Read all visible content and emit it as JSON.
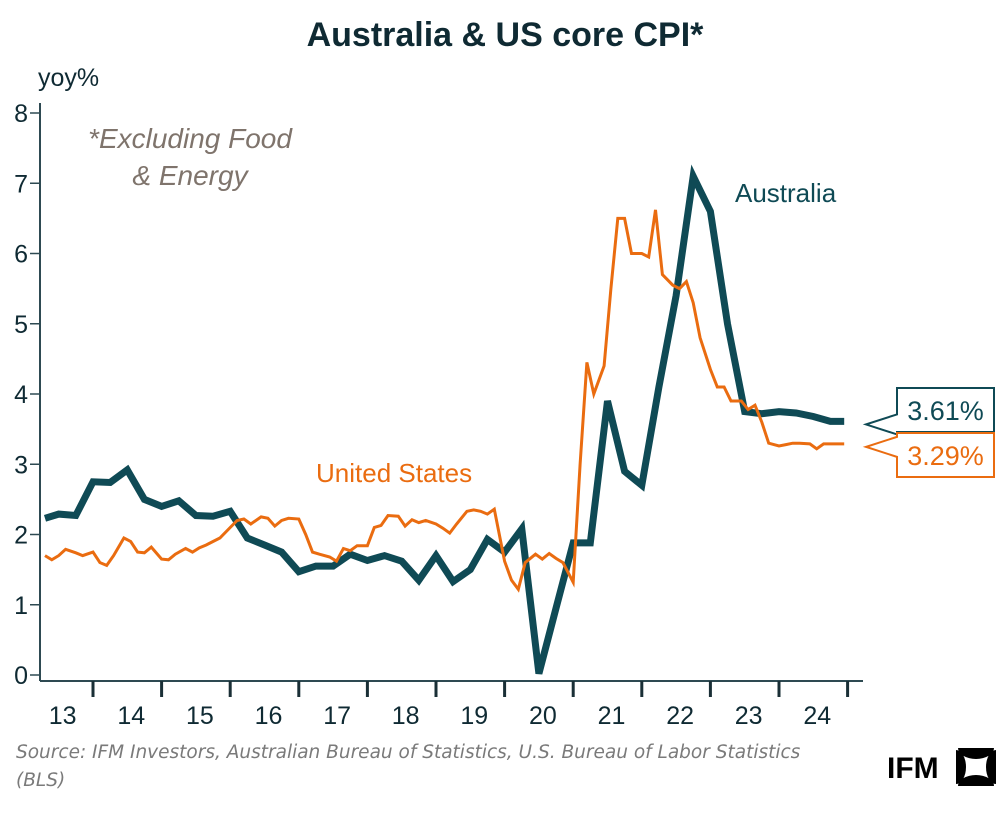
{
  "chart_data": {
    "type": "line",
    "title": "Australia & US core CPI*",
    "ylabel": "yoy%",
    "xlabel": "",
    "ylim": [
      0,
      8
    ],
    "yticks": [
      0,
      1,
      2,
      3,
      4,
      5,
      6,
      7,
      8
    ],
    "xlim": [
      2013.0,
      2025.25
    ],
    "xtick_labels": [
      "13",
      "14",
      "15",
      "16",
      "17",
      "18",
      "19",
      "20",
      "21",
      "22",
      "23",
      "24"
    ],
    "xtick_years": [
      2013,
      2014,
      2015,
      2016,
      2017,
      2018,
      2019,
      2020,
      2021,
      2022,
      2023,
      2024
    ],
    "grid": false,
    "annotation": "*Excluding Food\n& Energy",
    "annotation_lines": [
      "*Excluding Food",
      "& Energy"
    ],
    "series": [
      {
        "name": "Australia",
        "color": "#0f4a55",
        "frequency": "quarterly",
        "x": [
          2013.3,
          2013.5,
          2013.75,
          2014.0,
          2014.25,
          2014.5,
          2014.75,
          2015.0,
          2015.25,
          2015.5,
          2015.75,
          2016.0,
          2016.25,
          2016.5,
          2016.75,
          2017.0,
          2017.25,
          2017.5,
          2017.75,
          2018.0,
          2018.25,
          2018.5,
          2018.75,
          2019.0,
          2019.25,
          2019.5,
          2019.75,
          2020.0,
          2020.25,
          2020.5,
          2020.75,
          2021.0,
          2021.25,
          2021.5,
          2021.75,
          2022.0,
          2022.25,
          2022.5,
          2022.75,
          2023.0,
          2023.25,
          2023.5,
          2023.75,
          2024.0,
          2024.25,
          2024.5,
          2024.75,
          2024.95
        ],
        "values": [
          2.23,
          2.29,
          2.27,
          2.75,
          2.74,
          2.92,
          2.5,
          2.4,
          2.48,
          2.27,
          2.26,
          2.33,
          1.95,
          1.85,
          1.75,
          1.47,
          1.55,
          1.55,
          1.72,
          1.63,
          1.7,
          1.62,
          1.35,
          1.7,
          1.33,
          1.5,
          1.93,
          1.75,
          2.08,
          0.02,
          0.95,
          1.88,
          1.88,
          3.9,
          2.9,
          2.7,
          4.1,
          5.4,
          7.1,
          6.6,
          5.0,
          3.75,
          3.72,
          3.75,
          3.73,
          3.68,
          3.61,
          3.61
        ]
      },
      {
        "name": "United States",
        "color": "#ea6c10",
        "frequency": "monthly",
        "x": [
          2013.3,
          2013.4,
          2013.5,
          2013.6,
          2013.75,
          2013.85,
          2014.0,
          2014.1,
          2014.2,
          2014.3,
          2014.45,
          2014.55,
          2014.65,
          2014.75,
          2014.85,
          2015.0,
          2015.1,
          2015.2,
          2015.35,
          2015.45,
          2015.55,
          2015.65,
          2015.75,
          2015.85,
          2016.0,
          2016.1,
          2016.2,
          2016.3,
          2016.45,
          2016.55,
          2016.65,
          2016.75,
          2016.85,
          2017.0,
          2017.1,
          2017.2,
          2017.3,
          2017.45,
          2017.55,
          2017.65,
          2017.75,
          2017.85,
          2018.0,
          2018.1,
          2018.2,
          2018.3,
          2018.45,
          2018.55,
          2018.65,
          2018.75,
          2018.85,
          2019.0,
          2019.1,
          2019.2,
          2019.3,
          2019.45,
          2019.55,
          2019.65,
          2019.75,
          2019.85,
          2020.0,
          2020.1,
          2020.2,
          2020.3,
          2020.45,
          2020.55,
          2020.65,
          2020.75,
          2020.85,
          2021.0,
          2021.1,
          2021.2,
          2021.3,
          2021.45,
          2021.55,
          2021.65,
          2021.75,
          2021.85,
          2022.0,
          2022.1,
          2022.2,
          2022.3,
          2022.45,
          2022.55,
          2022.65,
          2022.75,
          2022.85,
          2023.0,
          2023.1,
          2023.2,
          2023.3,
          2023.45,
          2023.55,
          2023.65,
          2023.75,
          2023.85,
          2024.0,
          2024.1,
          2024.2,
          2024.3,
          2024.45,
          2024.55,
          2024.65,
          2024.75,
          2024.85,
          2024.95
        ],
        "values": [
          1.7,
          1.64,
          1.7,
          1.79,
          1.74,
          1.7,
          1.75,
          1.6,
          1.56,
          1.7,
          1.95,
          1.9,
          1.75,
          1.74,
          1.82,
          1.65,
          1.64,
          1.72,
          1.8,
          1.75,
          1.81,
          1.85,
          1.9,
          1.95,
          2.1,
          2.2,
          2.22,
          2.15,
          2.25,
          2.23,
          2.12,
          2.2,
          2.23,
          2.22,
          2.0,
          1.75,
          1.72,
          1.68,
          1.62,
          1.8,
          1.77,
          1.84,
          1.84,
          2.1,
          2.13,
          2.27,
          2.26,
          2.12,
          2.21,
          2.17,
          2.2,
          2.15,
          2.09,
          2.02,
          2.15,
          2.33,
          2.35,
          2.33,
          2.29,
          2.36,
          1.62,
          1.35,
          1.22,
          1.6,
          1.72,
          1.65,
          1.73,
          1.66,
          1.6,
          1.32,
          3.0,
          4.45,
          4.0,
          4.4,
          5.5,
          6.5,
          6.5,
          6.0,
          6.0,
          5.95,
          6.62,
          5.7,
          5.55,
          5.5,
          5.6,
          5.3,
          4.8,
          4.35,
          4.1,
          4.1,
          3.9,
          3.9,
          3.78,
          3.84,
          3.6,
          3.3,
          3.26,
          3.28,
          3.3,
          3.3,
          3.29,
          3.22,
          3.29,
          3.29,
          3.29,
          3.29
        ]
      }
    ],
    "end_labels": [
      {
        "series": "Australia",
        "text": "3.61%",
        "value": 3.61
      },
      {
        "series": "United States",
        "text": "3.29%",
        "value": 3.29
      }
    ],
    "series_labels": [
      {
        "series": "Australia",
        "text": "Australia"
      },
      {
        "series": "United States",
        "text": "United States"
      }
    ]
  },
  "footer": {
    "source": "Source: IFM Investors, Australian Bureau of Statistics, U.S. Bureau of Labor Statistics",
    "source_line2": "(BLS)",
    "logo_text": "IFM",
    "logo_icon": "ifm-mark-icon"
  }
}
